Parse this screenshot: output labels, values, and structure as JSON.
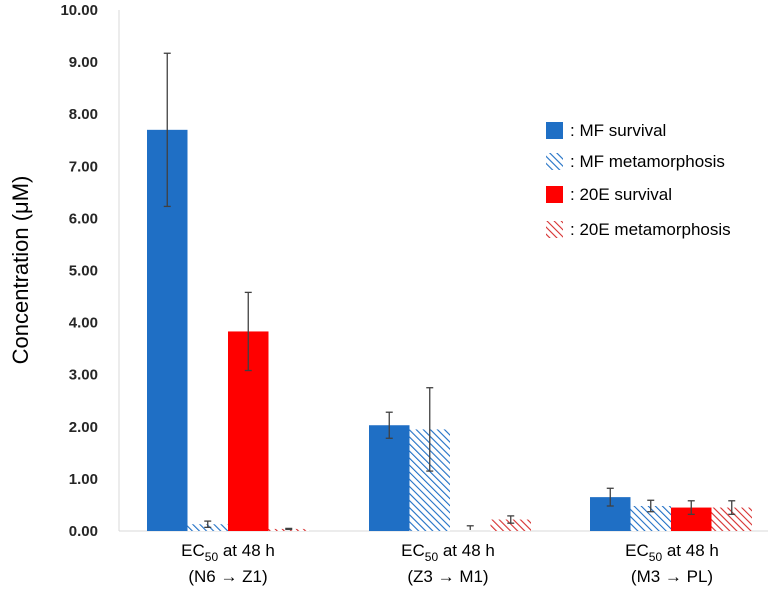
{
  "chart_data": {
    "type": "bar",
    "title": "",
    "ylabel": "Concentration (μM)",
    "xlabel": "",
    "ylim": [
      0,
      10
    ],
    "y_ticks": [
      "0.00",
      "1.00",
      "2.00",
      "3.00",
      "4.00",
      "5.00",
      "6.00",
      "7.00",
      "8.00",
      "9.00",
      "10.00"
    ],
    "categories": [
      {
        "prefix": "EC",
        "sub": "50",
        "suffix": " at 48 h",
        "line2": "(N6 → Z1)"
      },
      {
        "prefix": "EC",
        "sub": "50",
        "suffix": " at 48 h",
        "line2": "(Z3 → M1)"
      },
      {
        "prefix": "EC",
        "sub": "50",
        "suffix": " at 48 h",
        "line2": "(M3 → PL)"
      }
    ],
    "series": [
      {
        "name": ": MF survival",
        "color": "#1f6fc5",
        "pattern": "solid",
        "values": [
          7.7,
          2.03,
          0.65
        ],
        "errors": [
          1.47,
          0.25,
          0.17
        ]
      },
      {
        "name": ": MF metamorphosis",
        "color": "#1f6fc5",
        "pattern": "hatch",
        "values": [
          0.13,
          1.95,
          0.48
        ],
        "errors": [
          0.06,
          0.8,
          0.11
        ]
      },
      {
        "name": ": 20E survival",
        "color": "#ff0000",
        "pattern": "solid",
        "values": [
          3.83,
          null,
          0.45
        ],
        "errors": [
          0.75,
          null,
          0.13
        ]
      },
      {
        "name": ": 20E metamorphosis",
        "color": "#d62d2d",
        "pattern": "hatch",
        "values": [
          0.04,
          0.22,
          0.45
        ],
        "errors": [
          0.01,
          0.07,
          0.13
        ]
      }
    ],
    "annotations": [
      {
        "category_index": 1,
        "series_index": 2,
        "note": "no bar; tick-only marker near 0.05"
      }
    ],
    "legend_position": "right",
    "grid": false
  }
}
